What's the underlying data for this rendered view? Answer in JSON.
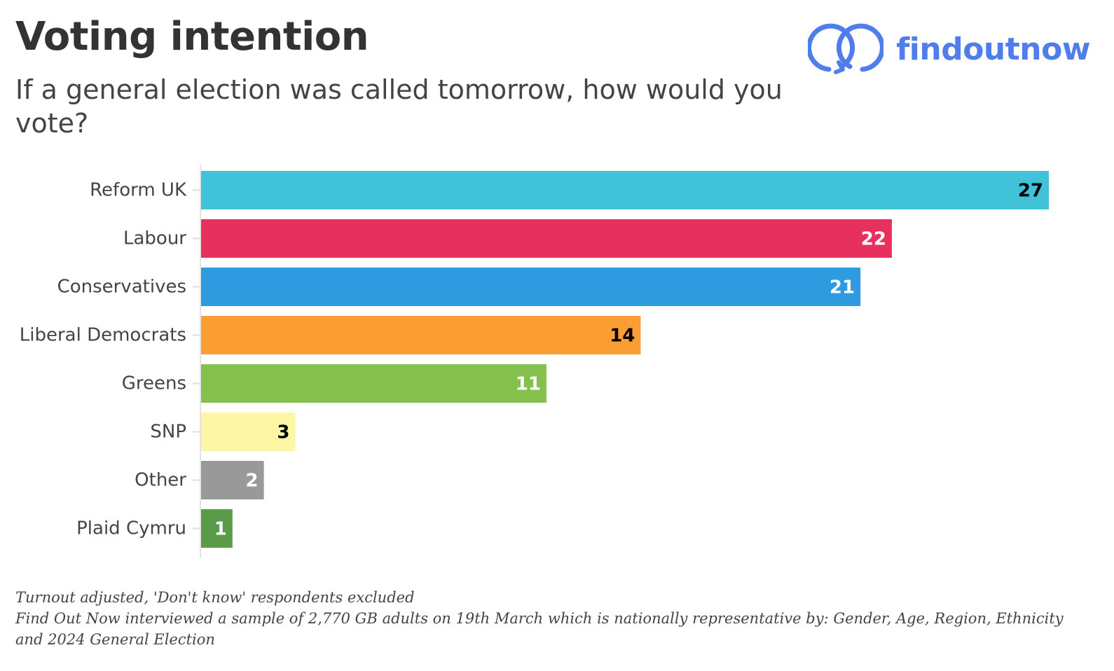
{
  "title": "Voting intention",
  "subtitle": "If a general election was called tomorrow, how would you vote?",
  "brand": {
    "name": "findoutnow",
    "icon": "interlocking-rings-logo-icon",
    "color": "#4f7dec"
  },
  "chart_data": {
    "type": "bar",
    "orientation": "horizontal",
    "categories": [
      "Reform UK",
      "Labour",
      "Conservatives",
      "Liberal Democrats",
      "Greens",
      "SNP",
      "Other",
      "Plaid Cymru"
    ],
    "values": [
      27,
      22,
      21,
      14,
      11,
      3,
      2,
      1
    ],
    "colors": [
      "#40c3d9",
      "#e8305f",
      "#2e9ae0",
      "#fa9d32",
      "#86c04c",
      "#fdf6a4",
      "#999999",
      "#5a9b4a"
    ],
    "label_colors": [
      "#000000",
      "#ffffff",
      "#ffffff",
      "#000000",
      "#ffffff",
      "#000000",
      "#ffffff",
      "#ffffff"
    ],
    "xlim": [
      0,
      27
    ],
    "grid": false,
    "legend": "none",
    "data_labels": true
  },
  "footnotes": [
    "Turnout adjusted, 'Don't know' respondents excluded",
    "Find Out Now interviewed a sample of 2,770 GB adults on 19th March which is nationally representative by: Gender, Age, Region, Ethnicity and 2024 General Election"
  ]
}
